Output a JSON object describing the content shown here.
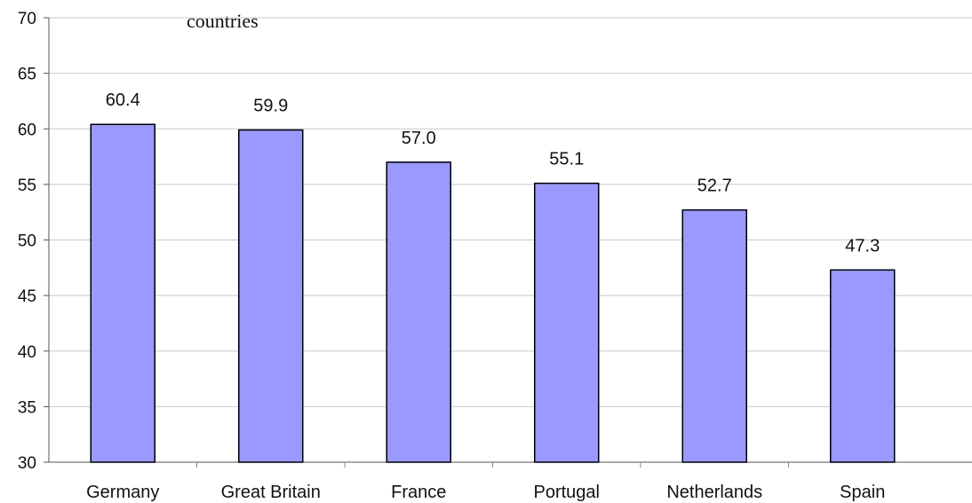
{
  "chart_data": {
    "type": "bar",
    "title_fragment": "countries",
    "categories": [
      "Germany",
      "Great Britain",
      "France",
      "Portugal",
      "Netherlands",
      "Spain"
    ],
    "values": [
      60.4,
      59.9,
      57.0,
      55.1,
      52.7,
      47.3
    ],
    "data_labels": [
      "60.4",
      "59.9",
      "57.0",
      "55.1",
      "52.7",
      "47.3"
    ],
    "ylim": [
      30,
      70
    ],
    "yticks": [
      30,
      35,
      40,
      45,
      50,
      55,
      60,
      65,
      70
    ],
    "grid": true,
    "legend": "none",
    "bar_color": "#9999ff",
    "bar_edge_color": "#000000",
    "grid_color": "#c8c8c8"
  }
}
